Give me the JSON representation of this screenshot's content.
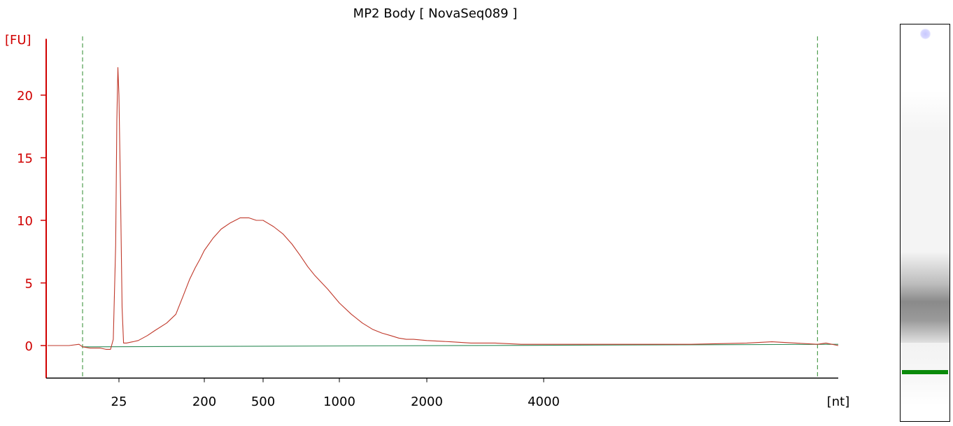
{
  "chart_data": {
    "type": "line",
    "title": "MP2 Body  [ NovaSeq089 ]",
    "ylabel": "[FU]",
    "xlabel": "[nt]",
    "ylim": [
      -2.6,
      24.5
    ],
    "yticks": [
      0,
      5,
      10,
      15,
      20
    ],
    "xticks": [
      25,
      200,
      500,
      1000,
      2000,
      4000
    ],
    "grid": false,
    "marker_lines_nt": [
      6,
      8500
    ],
    "series": [
      {
        "color": "#c0392b",
        "x": [
          1,
          3,
          5,
          6,
          8,
          10,
          12,
          15,
          18,
          20,
          22,
          23,
          24,
          25,
          26,
          27,
          28,
          30,
          35,
          40,
          50,
          60,
          80,
          100,
          120,
          140,
          160,
          180,
          200,
          230,
          260,
          300,
          350,
          400,
          450,
          500,
          550,
          600,
          650,
          700,
          750,
          800,
          900,
          1000,
          1100,
          1200,
          1300,
          1400,
          1500,
          1600,
          1700,
          1800,
          2000,
          2300,
          2600,
          3000,
          3500,
          4000,
          5000,
          6000,
          7000,
          7500,
          8000,
          8500,
          8700,
          9000
        ],
        "y": [
          0.0,
          0.0,
          0.1,
          -0.1,
          -0.2,
          -0.2,
          -0.2,
          -0.3,
          -0.3,
          0.5,
          8.0,
          18.0,
          22.2,
          20.0,
          12.0,
          3.0,
          0.2,
          0.2,
          0.3,
          0.4,
          0.8,
          1.2,
          1.8,
          2.5,
          4.0,
          5.3,
          6.2,
          6.9,
          7.6,
          8.6,
          9.3,
          9.8,
          10.2,
          10.2,
          10.0,
          10.0,
          9.5,
          8.9,
          8.1,
          7.2,
          6.3,
          5.6,
          4.5,
          3.4,
          2.5,
          1.8,
          1.3,
          1.0,
          0.8,
          0.6,
          0.5,
          0.5,
          0.4,
          0.3,
          0.2,
          0.2,
          0.1,
          0.1,
          0.1,
          0.1,
          0.2,
          0.3,
          0.2,
          0.1,
          0.2,
          0.0
        ]
      },
      {
        "color": "#2e8b57",
        "x": [
          6,
          9000
        ],
        "y": [
          -0.1,
          0.1
        ]
      }
    ]
  },
  "gel": {
    "upper_marker_color": "#c8c8ff",
    "lower_marker_color": "#0a8a0a",
    "smear_color": "#8a8a8a"
  }
}
